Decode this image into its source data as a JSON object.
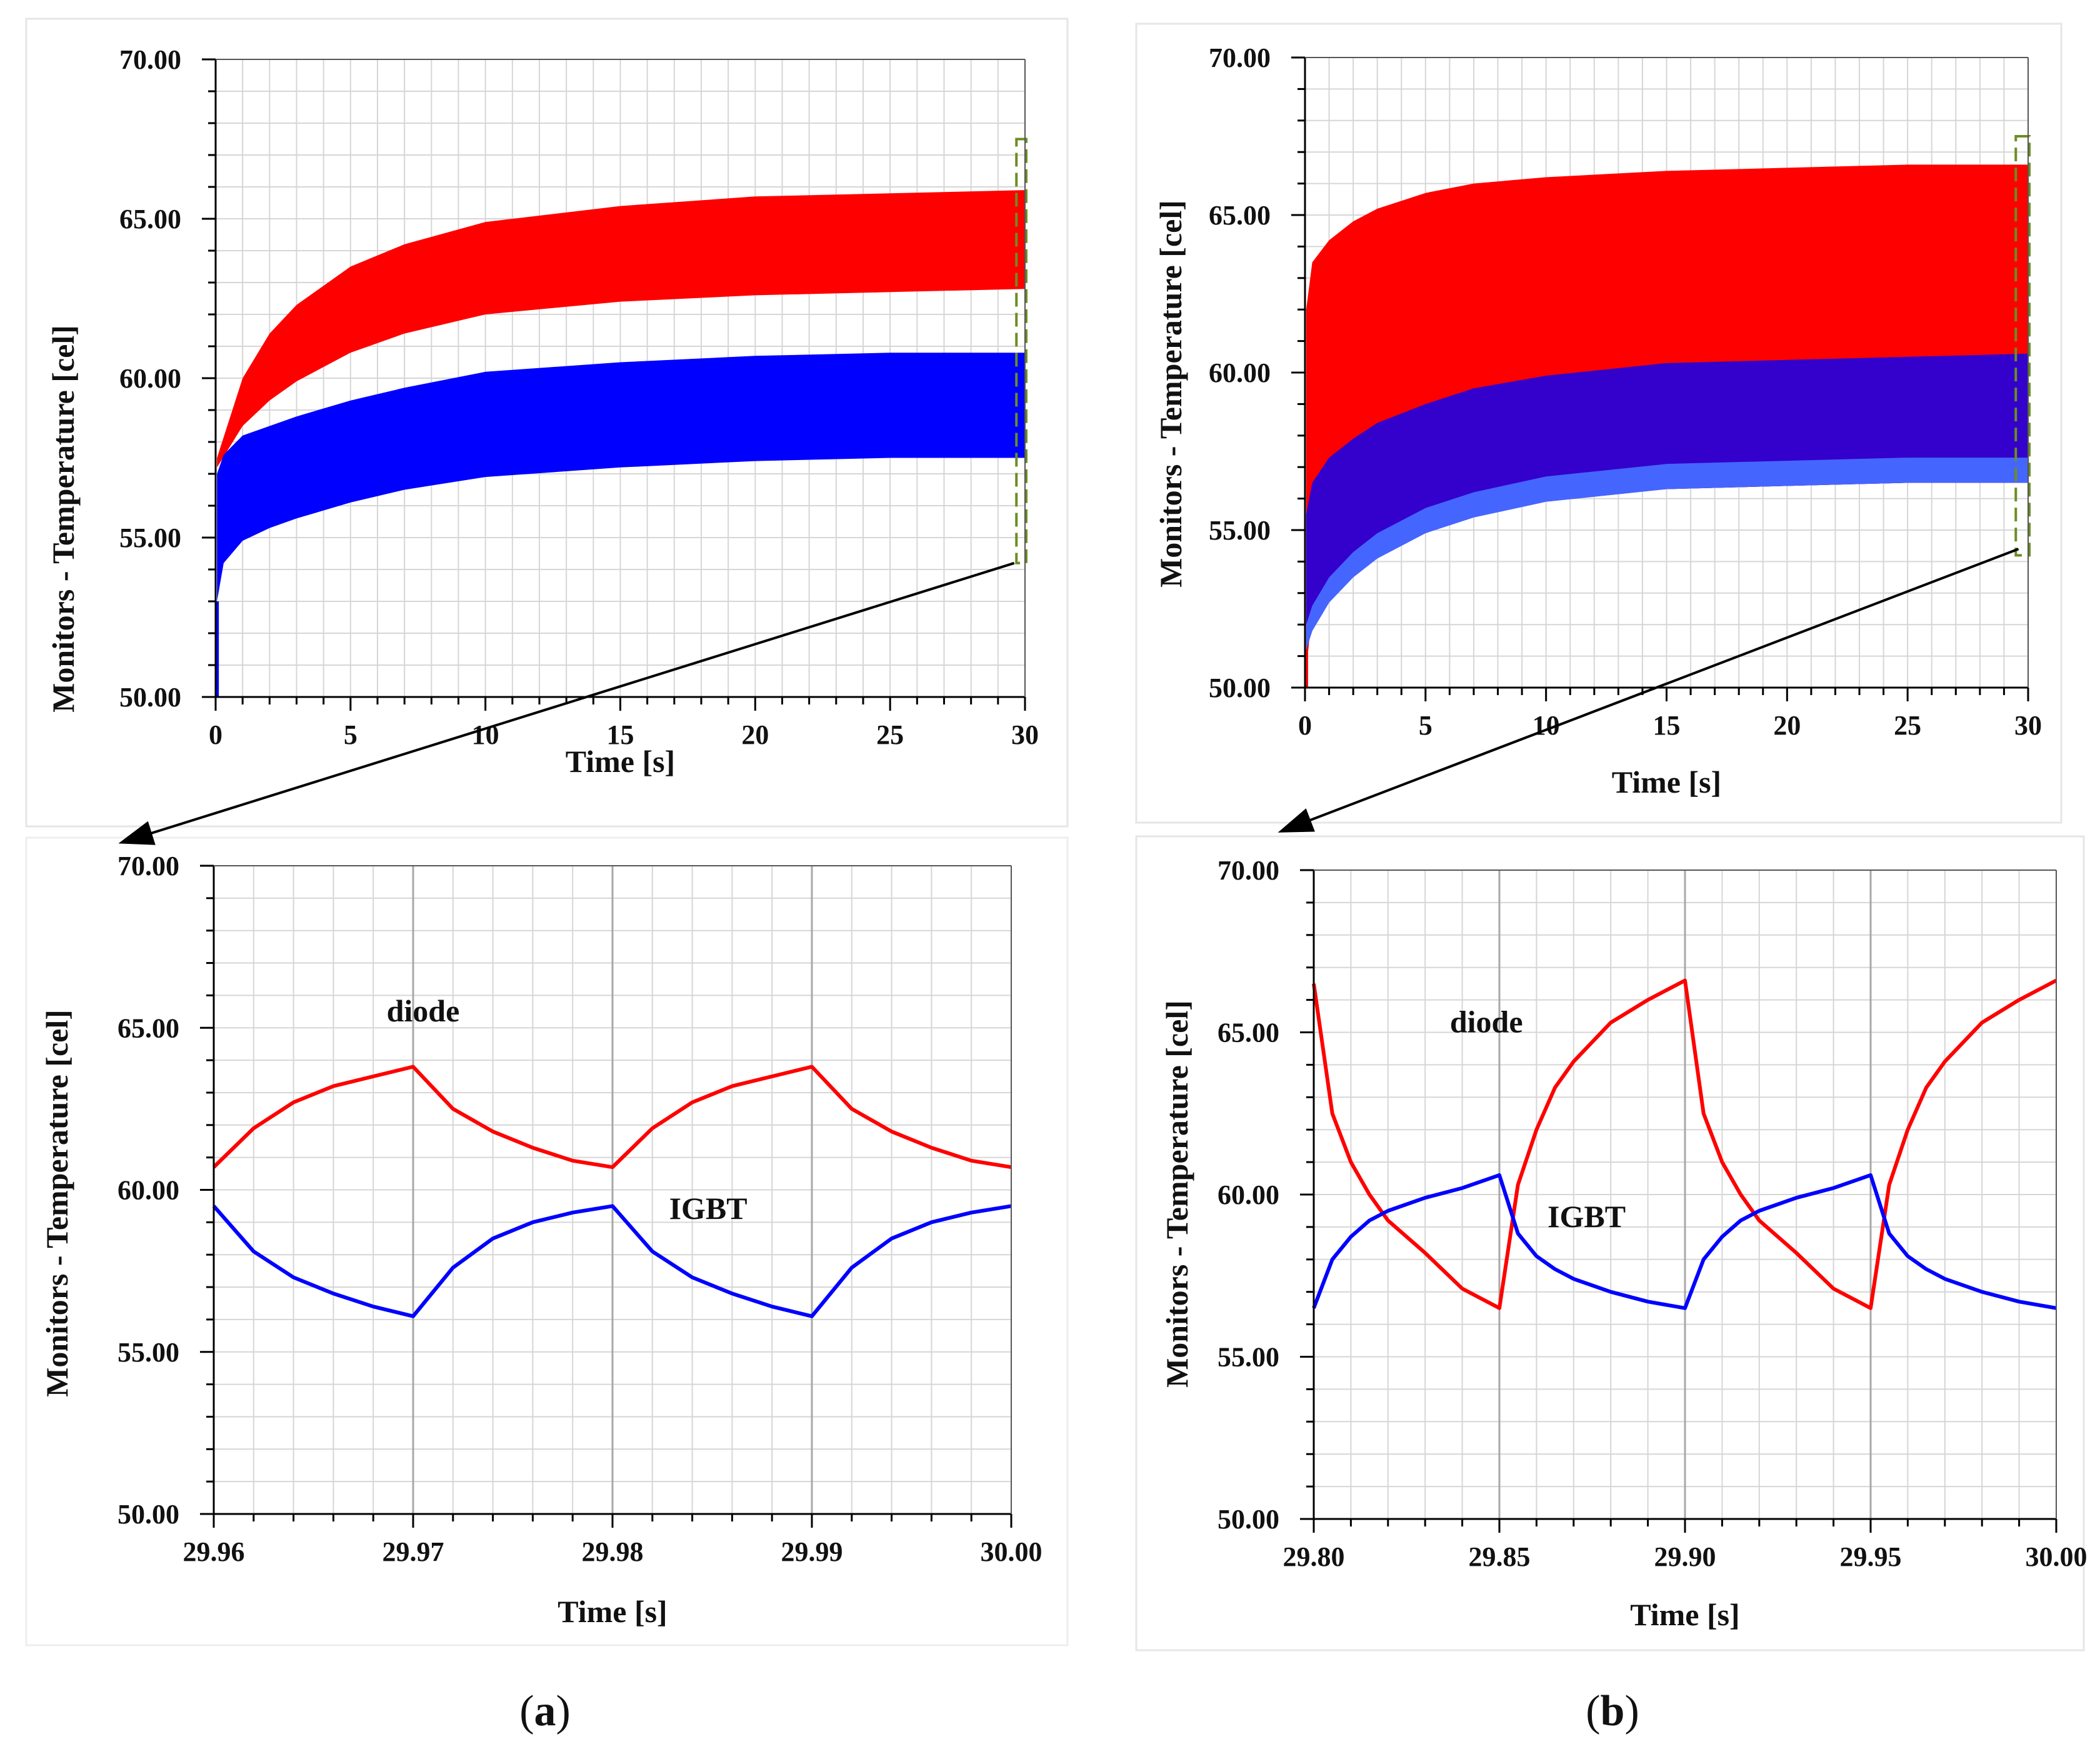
{
  "colors": {
    "diode": "#ff0000",
    "igbt": "#0000ff",
    "igbt_overlap": "#3300cc",
    "zoom_box": "#6b8e23"
  },
  "panel_labels": [
    {
      "prefix": "(",
      "letter": "a",
      "suffix": ")"
    },
    {
      "prefix": "(",
      "letter": "b",
      "suffix": ")"
    }
  ],
  "chart_data": [
    {
      "id": "a-top",
      "type": "area",
      "title": "",
      "xlabel": "Time [s]",
      "ylabel": "Monitors - Temperature [cel]",
      "xlim": [
        0,
        30
      ],
      "ylim": [
        50,
        70
      ],
      "xticks": [
        0,
        5,
        10,
        15,
        20,
        25,
        30
      ],
      "xtick_labels": [
        "0",
        "5",
        "10",
        "15",
        "20",
        "25",
        "30"
      ],
      "yticks": [
        50,
        55,
        60,
        65,
        70
      ],
      "ytick_labels": [
        "50.00",
        "55.00",
        "60.00",
        "65.00",
        "70.00"
      ],
      "grid": true,
      "zoom_range": [
        29.96,
        30.0
      ],
      "series": [
        {
          "name": "diode",
          "x": [
            0.05,
            1,
            2,
            3,
            5,
            7,
            10,
            15,
            20,
            25,
            30
          ],
          "upper": [
            57.5,
            60.0,
            61.4,
            62.3,
            63.5,
            64.2,
            64.9,
            65.4,
            65.7,
            65.8,
            65.9
          ],
          "lower": [
            57.2,
            58.5,
            59.3,
            59.9,
            60.8,
            61.4,
            62.0,
            62.4,
            62.6,
            62.7,
            62.8
          ]
        },
        {
          "name": "IGBT",
          "x": [
            0.05,
            0.3,
            1,
            2,
            3,
            5,
            7,
            10,
            15,
            20,
            25,
            30
          ],
          "upper": [
            57.0,
            57.6,
            58.2,
            58.5,
            58.8,
            59.3,
            59.7,
            60.2,
            60.5,
            60.7,
            60.8,
            60.8
          ],
          "lower": [
            53.0,
            54.2,
            54.9,
            55.3,
            55.6,
            56.1,
            56.5,
            56.9,
            57.2,
            57.4,
            57.5,
            57.5
          ]
        }
      ]
    },
    {
      "id": "a-bottom",
      "type": "line",
      "title": "",
      "xlabel": "Time [s]",
      "ylabel": "Monitors - Temperature [cel]",
      "xlim": [
        29.96,
        30.0
      ],
      "ylim": [
        50,
        70
      ],
      "xticks": [
        29.96,
        29.97,
        29.98,
        29.99,
        30.0
      ],
      "xtick_labels": [
        "29.96",
        "29.97",
        "29.98",
        "29.99",
        "30.00"
      ],
      "yticks": [
        50,
        55,
        60,
        65,
        70
      ],
      "ytick_labels": [
        "50.00",
        "55.00",
        "60.00",
        "65.00",
        "70.00"
      ],
      "grid": true,
      "annotations": [
        {
          "text": "diode",
          "x": 29.9705,
          "y": 65.2
        },
        {
          "text": "IGBT",
          "x": 29.9848,
          "y": 59.1
        }
      ],
      "series": [
        {
          "name": "diode",
          "x": [
            29.96,
            29.962,
            29.964,
            29.966,
            29.968,
            29.97,
            29.972,
            29.974,
            29.976,
            29.978,
            29.98,
            29.982,
            29.984,
            29.986,
            29.988,
            29.99,
            29.992,
            29.994,
            29.996,
            29.998,
            30.0
          ],
          "y": [
            60.7,
            61.9,
            62.7,
            63.2,
            63.5,
            63.8,
            62.5,
            61.8,
            61.3,
            60.9,
            60.7,
            61.9,
            62.7,
            63.2,
            63.5,
            63.8,
            62.5,
            61.8,
            61.3,
            60.9,
            60.7
          ]
        },
        {
          "name": "IGBT",
          "x": [
            29.96,
            29.962,
            29.964,
            29.966,
            29.968,
            29.97,
            29.972,
            29.974,
            29.976,
            29.978,
            29.98,
            29.982,
            29.984,
            29.986,
            29.988,
            29.99,
            29.992,
            29.994,
            29.996,
            29.998,
            30.0
          ],
          "y": [
            59.5,
            58.1,
            57.3,
            56.8,
            56.4,
            56.1,
            57.6,
            58.5,
            59.0,
            59.3,
            59.5,
            58.1,
            57.3,
            56.8,
            56.4,
            56.1,
            57.6,
            58.5,
            59.0,
            59.3,
            59.5
          ]
        }
      ]
    },
    {
      "id": "b-top",
      "type": "area",
      "title": "",
      "xlabel": "Time [s]",
      "ylabel": "Monitors - Temperature [cel]",
      "xlim": [
        0,
        30
      ],
      "ylim": [
        50,
        70
      ],
      "xticks": [
        0,
        5,
        10,
        15,
        20,
        25,
        30
      ],
      "xtick_labels": [
        "0",
        "5",
        "10",
        "15",
        "20",
        "25",
        "30"
      ],
      "yticks": [
        50,
        55,
        60,
        65,
        70
      ],
      "ytick_labels": [
        "50.00",
        "55.00",
        "60.00",
        "65.00",
        "70.00"
      ],
      "grid": true,
      "zoom_range": [
        29.8,
        30.0
      ],
      "series": [
        {
          "name": "diode",
          "x": [
            0.05,
            0.3,
            1,
            2,
            3,
            5,
            7,
            10,
            15,
            20,
            25,
            30
          ],
          "upper": [
            62.0,
            63.5,
            64.2,
            64.8,
            65.2,
            65.7,
            66.0,
            66.2,
            66.4,
            66.5,
            66.6,
            66.6
          ],
          "lower": [
            50.5,
            52.5,
            53.5,
            54.3,
            54.8,
            55.4,
            55.8,
            56.1,
            56.3,
            56.4,
            56.5,
            56.5
          ]
        },
        {
          "name": "IGBT",
          "x": [
            0.05,
            0.3,
            1,
            2,
            3,
            5,
            7,
            10,
            15,
            20,
            25,
            30
          ],
          "upper": [
            55.5,
            56.5,
            57.3,
            57.9,
            58.4,
            59.0,
            59.5,
            59.9,
            60.3,
            60.4,
            60.5,
            60.6
          ],
          "lower": [
            51.2,
            51.8,
            52.7,
            53.5,
            54.1,
            54.9,
            55.4,
            55.9,
            56.3,
            56.4,
            56.5,
            56.5
          ]
        }
      ]
    },
    {
      "id": "b-bottom",
      "type": "line",
      "title": "",
      "xlabel": "Time [s]",
      "ylabel": "Monitors - Temperature [cel]",
      "xlim": [
        29.8,
        30.0
      ],
      "ylim": [
        50,
        70
      ],
      "xticks": [
        29.8,
        29.85,
        29.9,
        29.95,
        30.0
      ],
      "xtick_labels": [
        "29.80",
        "29.85",
        "29.90",
        "29.95",
        "30.00"
      ],
      "yticks": [
        50,
        55,
        60,
        65,
        70
      ],
      "ytick_labels": [
        "50.00",
        "55.00",
        "60.00",
        "65.00",
        "70.00"
      ],
      "grid": true,
      "annotations": [
        {
          "text": "diode",
          "x": 29.8465,
          "y": 65.0
        },
        {
          "text": "IGBT",
          "x": 29.8735,
          "y": 59.0
        }
      ],
      "series": [
        {
          "name": "diode",
          "x": [
            29.8,
            29.805,
            29.81,
            29.815,
            29.82,
            29.83,
            29.84,
            29.85,
            29.855,
            29.86,
            29.865,
            29.87,
            29.88,
            29.89,
            29.9,
            29.905,
            29.91,
            29.915,
            29.92,
            29.93,
            29.94,
            29.95,
            29.955,
            29.96,
            29.965,
            29.97,
            29.98,
            29.99,
            30.0
          ],
          "y": [
            66.5,
            62.5,
            61.0,
            60.0,
            59.2,
            58.2,
            57.1,
            56.5,
            60.3,
            62.0,
            63.3,
            64.1,
            65.3,
            66.0,
            66.6,
            62.5,
            61.0,
            60.0,
            59.2,
            58.2,
            57.1,
            56.5,
            60.3,
            62.0,
            63.3,
            64.1,
            65.3,
            66.0,
            66.6
          ]
        },
        {
          "name": "IGBT",
          "x": [
            29.8,
            29.805,
            29.81,
            29.815,
            29.82,
            29.83,
            29.84,
            29.85,
            29.855,
            29.86,
            29.865,
            29.87,
            29.88,
            29.89,
            29.9,
            29.905,
            29.91,
            29.915,
            29.92,
            29.93,
            29.94,
            29.95,
            29.955,
            29.96,
            29.965,
            29.97,
            29.98,
            29.99,
            30.0
          ],
          "y": [
            56.5,
            58.0,
            58.7,
            59.2,
            59.5,
            59.9,
            60.2,
            60.6,
            58.8,
            58.1,
            57.7,
            57.4,
            57.0,
            56.7,
            56.5,
            58.0,
            58.7,
            59.2,
            59.5,
            59.9,
            60.2,
            60.6,
            58.8,
            58.1,
            57.7,
            57.4,
            57.0,
            56.7,
            56.5
          ]
        }
      ]
    }
  ]
}
